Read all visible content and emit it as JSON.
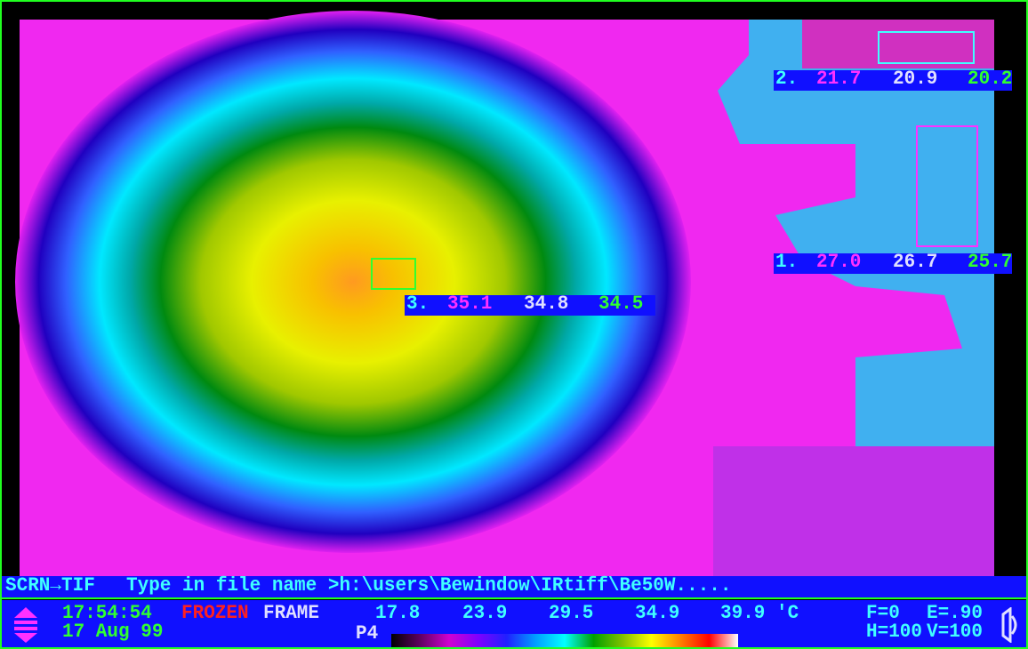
{
  "prompt": {
    "command": "SCRN→TIF",
    "message": "Type in file name >h:\\users\\Bewindow\\IRtiff\\Be50W....."
  },
  "status": {
    "time": "17:54:54",
    "date": "17 Aug 99",
    "state": "FROZEN",
    "mode": "FRAME",
    "palette": "P4",
    "scale": [
      "17.8",
      "23.9",
      "29.5",
      "34.9",
      "39.9 'C"
    ],
    "focus": "F=0",
    "emissivity": "E=.90",
    "h": "H=100",
    "v": "V=100"
  },
  "spots": [
    {
      "label": "1.",
      "values": [
        "27.0",
        "26.7",
        "25.7"
      ]
    },
    {
      "label": "2.",
      "values": [
        "21.7",
        "20.9",
        "20.2"
      ]
    },
    {
      "label": "3.",
      "values": [
        "35.1",
        "34.8",
        "34.5"
      ]
    }
  ]
}
